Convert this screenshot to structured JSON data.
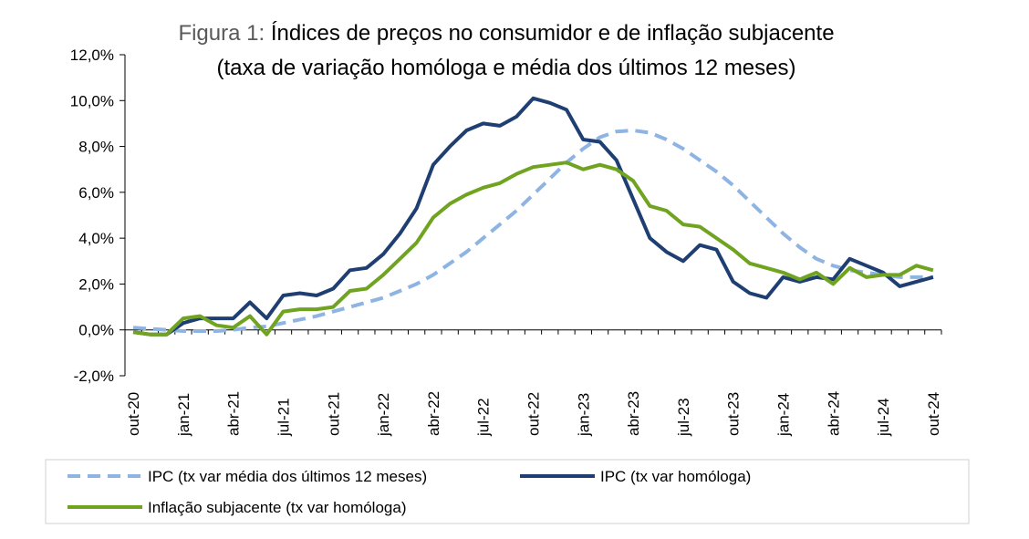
{
  "chart_data": {
    "type": "line",
    "title_prefix": "Figura 1:",
    "title": "Índices de preços no consumidor e de inflação subjacente",
    "subtitle": "(taxa de variação homóloga e média dos últimos 12 meses)",
    "xlabel": "",
    "ylabel": "",
    "ylim": [
      -2,
      12
    ],
    "y_ticks": [
      -2,
      0,
      2,
      4,
      6,
      8,
      10,
      12
    ],
    "y_tick_labels": [
      "-2,0%",
      "0,0%",
      "2,0%",
      "4,0%",
      "6,0%",
      "8,0%",
      "10,0%",
      "12,0%"
    ],
    "x_ticks": [
      {
        "index": 0,
        "label": "out-20"
      },
      {
        "index": 3,
        "label": "jan-21"
      },
      {
        "index": 6,
        "label": "abr-21"
      },
      {
        "index": 9,
        "label": "jul-21"
      },
      {
        "index": 12,
        "label": "out-21"
      },
      {
        "index": 15,
        "label": "jan-22"
      },
      {
        "index": 18,
        "label": "abr-22"
      },
      {
        "index": 21,
        "label": "jul-22"
      },
      {
        "index": 24,
        "label": "out-22"
      },
      {
        "index": 27,
        "label": "jan-23"
      },
      {
        "index": 30,
        "label": "abr-23"
      },
      {
        "index": 33,
        "label": "jul-23"
      },
      {
        "index": 36,
        "label": "out-23"
      },
      {
        "index": 39,
        "label": "jan-24"
      },
      {
        "index": 42,
        "label": "abr-24"
      },
      {
        "index": 45,
        "label": "jul-24"
      },
      {
        "index": 48,
        "label": "out-24"
      }
    ],
    "grid": false,
    "legend_position": "bottom",
    "series": [
      {
        "name": "IPC (tx var média dos últimos 12 meses)",
        "color": "#8EB4E3",
        "style": "dashed",
        "values": [
          0.1,
          0.05,
          0.0,
          -0.05,
          -0.05,
          -0.05,
          0.0,
          0.1,
          0.15,
          0.3,
          0.45,
          0.6,
          0.8,
          1.0,
          1.2,
          1.4,
          1.7,
          2.0,
          2.4,
          2.9,
          3.4,
          4.0,
          4.6,
          5.2,
          5.9,
          6.6,
          7.3,
          7.9,
          8.4,
          8.65,
          8.7,
          8.6,
          8.3,
          7.9,
          7.4,
          6.9,
          6.3,
          5.6,
          4.9,
          4.2,
          3.6,
          3.1,
          2.8,
          2.6,
          2.5,
          2.4,
          2.3,
          2.3,
          2.3
        ]
      },
      {
        "name": "IPC (tx var homóloga)",
        "color": "#1F3F73",
        "style": "solid",
        "values": [
          -0.1,
          -0.2,
          -0.2,
          0.3,
          0.5,
          0.5,
          0.5,
          1.2,
          0.5,
          1.5,
          1.6,
          1.5,
          1.8,
          2.6,
          2.7,
          3.3,
          4.2,
          5.3,
          7.2,
          8.0,
          8.7,
          9.0,
          8.9,
          9.3,
          10.1,
          9.9,
          9.6,
          8.3,
          8.2,
          7.4,
          5.7,
          4.0,
          3.4,
          3.0,
          3.7,
          3.5,
          2.1,
          1.6,
          1.4,
          2.3,
          2.1,
          2.3,
          2.2,
          3.1,
          2.8,
          2.5,
          1.9,
          2.1,
          2.3
        ]
      },
      {
        "name": "Inflação subjacente (tx var homóloga)",
        "color": "#6FA320",
        "style": "solid",
        "values": [
          -0.1,
          -0.2,
          -0.2,
          0.5,
          0.6,
          0.2,
          0.1,
          0.6,
          -0.2,
          0.8,
          0.9,
          0.9,
          1.0,
          1.7,
          1.8,
          2.4,
          3.1,
          3.8,
          4.9,
          5.5,
          5.9,
          6.2,
          6.4,
          6.8,
          7.1,
          7.2,
          7.3,
          7.0,
          7.2,
          7.0,
          6.5,
          5.4,
          5.2,
          4.6,
          4.5,
          4.0,
          3.5,
          2.9,
          2.7,
          2.5,
          2.2,
          2.5,
          2.0,
          2.7,
          2.3,
          2.4,
          2.4,
          2.8,
          2.6
        ]
      }
    ]
  }
}
